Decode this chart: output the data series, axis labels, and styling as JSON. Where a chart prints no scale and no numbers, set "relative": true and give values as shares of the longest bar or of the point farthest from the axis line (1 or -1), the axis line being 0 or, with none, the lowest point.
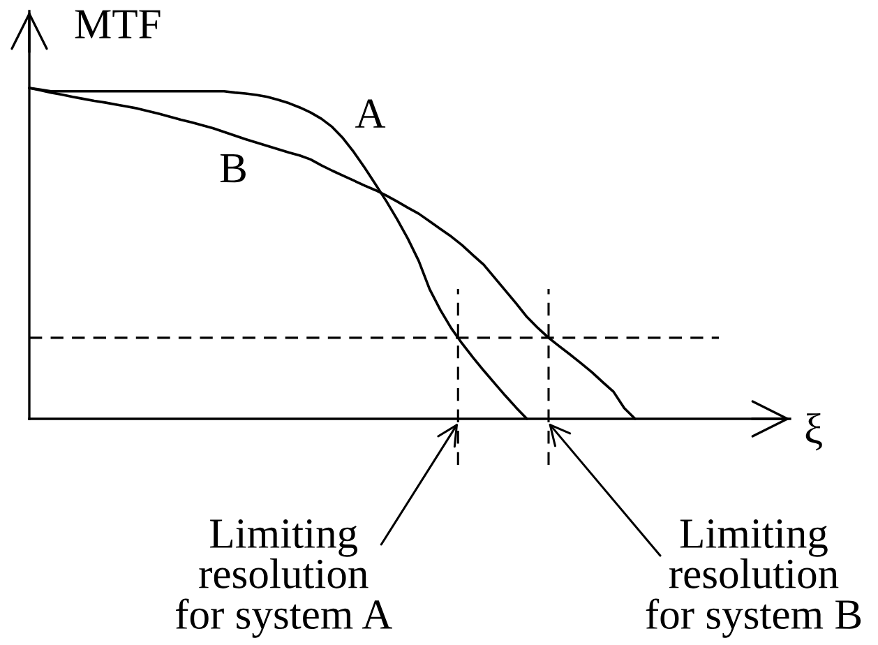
{
  "chart_data": {
    "type": "line",
    "relative": true,
    "ylabel": "MTF",
    "xlabel": "ξ",
    "categories": [
      null,
      null,
      null,
      null,
      null,
      null,
      null,
      null,
      null,
      null,
      null,
      null,
      null,
      null,
      null,
      null,
      null,
      null,
      null,
      null,
      null,
      null,
      null,
      null,
      null,
      null,
      null,
      null,
      null,
      null,
      null,
      null,
      null,
      null,
      null,
      null,
      null,
      null,
      null,
      null,
      null,
      null,
      null,
      null,
      null,
      null,
      null,
      null,
      null,
      null,
      null,
      null,
      null,
      null,
      null,
      null,
      null
    ],
    "series": [
      {
        "name": "A",
        "color": "#000000",
        "values": [
          1.0,
          0.995,
          0.99,
          0.99,
          0.99,
          0.99,
          0.99,
          0.99,
          0.99,
          0.99,
          0.99,
          0.99,
          0.99,
          0.99,
          0.99,
          0.99,
          0.99,
          0.99,
          0.99,
          0.986,
          0.983,
          0.979,
          0.973,
          0.964,
          0.954,
          0.941,
          0.926,
          0.907,
          0.882,
          0.848,
          0.806,
          0.759,
          0.709,
          0.658,
          0.603,
          0.544,
          0.477,
          0.392,
          0.329,
          0.274,
          0.228,
          0.186,
          0.146,
          0.108,
          0.07,
          0.034,
          0.0,
          null,
          null,
          null,
          null,
          null,
          null,
          null,
          null,
          null,
          null
        ]
      },
      {
        "name": "B",
        "color": "#000000",
        "values": [
          1.0,
          0.993,
          0.986,
          0.98,
          0.973,
          0.967,
          0.961,
          0.956,
          0.95,
          0.944,
          0.938,
          0.93,
          0.922,
          0.913,
          0.904,
          0.896,
          0.887,
          0.878,
          0.867,
          0.856,
          0.845,
          0.835,
          0.825,
          0.815,
          0.805,
          0.796,
          0.784,
          0.766,
          0.75,
          0.735,
          0.72,
          0.705,
          0.691,
          0.675,
          0.657,
          0.638,
          0.62,
          0.597,
          0.574,
          0.551,
          0.525,
          0.495,
          0.466,
          0.427,
          0.388,
          0.349,
          0.308,
          0.275,
          0.245,
          0.219,
          0.194,
          0.168,
          0.141,
          0.111,
          0.082,
          0.032,
          0.0
        ]
      }
    ],
    "ref_lines": [
      {
        "axis": "y",
        "value": 0.245,
        "line_style": "dashed",
        "color": "#000000"
      }
    ],
    "annotations": [
      "Limiting\nresolution\nfor system A",
      "Limiting\nresolution\nfor system B"
    ]
  }
}
